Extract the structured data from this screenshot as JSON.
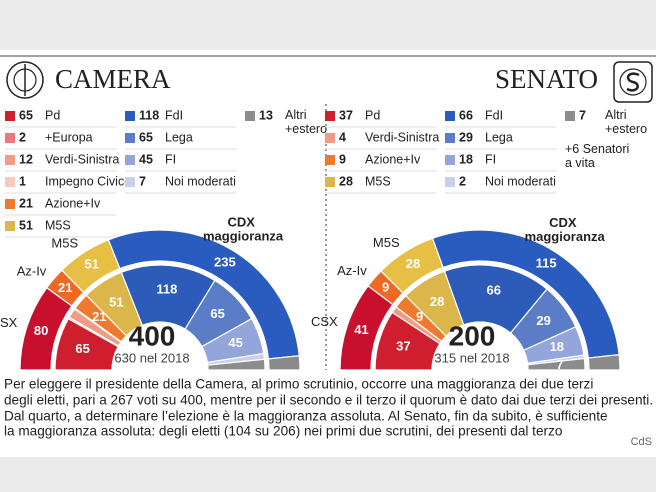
{
  "chart_data": [
    {
      "type": "parliament",
      "title": "CAMERA",
      "total": 400,
      "previous": "630 nel 2018",
      "categories": [
        "Pd",
        "+Europa",
        "Verdi-Sinistra",
        "Impegno Civico",
        "Azione+Iv",
        "M5S",
        "FdI",
        "Lega",
        "FI",
        "Noi moderati",
        "Altri +estero"
      ],
      "values": [
        65,
        2,
        12,
        1,
        21,
        51,
        118,
        65,
        45,
        7,
        13
      ],
      "colors": [
        "#cf1f2e",
        "#e8797c",
        "#f19b86",
        "#f7c9bf",
        "#ef7a2e",
        "#dcb64a",
        "#2d5bb9",
        "#5b7cc6",
        "#93a5da",
        "#c6cfec",
        "#8c8c8c"
      ],
      "coalitions": {
        "categories": [
          "CSX",
          "Az-Iv",
          "M5S",
          "CDX maggioranza",
          null
        ],
        "values": [
          80,
          21,
          51,
          235,
          13
        ],
        "colors": [
          "#c8102e",
          "#ee6a24",
          "#e6bf44",
          "#2a5bbf",
          "#8a8a8a"
        ]
      }
    },
    {
      "type": "parliament",
      "title": "SENATO",
      "total": 200,
      "previous": "315 nel 2018",
      "categories": [
        "Pd",
        "Verdi-Sinistra",
        "Azione+Iv",
        "M5S",
        "FdI",
        "Lega",
        "FI",
        "Noi moderati",
        "Altri +estero"
      ],
      "values": [
        37,
        4,
        9,
        28,
        66,
        29,
        18,
        2,
        7
      ],
      "colors": [
        "#cf1f2e",
        "#f19b86",
        "#ef7a2e",
        "#dcb64a",
        "#2d5bb9",
        "#5b7cc6",
        "#93a5da",
        "#c6cfec",
        "#8c8c8c"
      ],
      "coalitions": {
        "categories": [
          "CSX",
          "Az-Iv",
          "M5S",
          "CDX maggioranza",
          null
        ],
        "values": [
          41,
          9,
          28,
          115,
          7
        ],
        "colors": [
          "#c8102e",
          "#ee6a24",
          "#e6bf44",
          "#2a5bbf",
          "#8a8a8a"
        ]
      },
      "note": "+6 Senatori a vita"
    }
  ],
  "footnote": [
    "Per eleggere il presidente della Camera, al primo scrutinio, occorre una maggioranza dei due terzi",
    "degli eletti, pari a 267 voti su 400, mentre per il secondo e il terzo il quorum è dato dai due terzi dei presenti.",
    "Dal quarto, a determinare l’elezione è la maggioranza assoluta. Al Senato, fin da subito, è sufficiente",
    "la maggioranza assoluta: degli eletti (104 su 206) nei primi due scrutini, dei presenti dal terzo"
  ],
  "source": "CdS"
}
